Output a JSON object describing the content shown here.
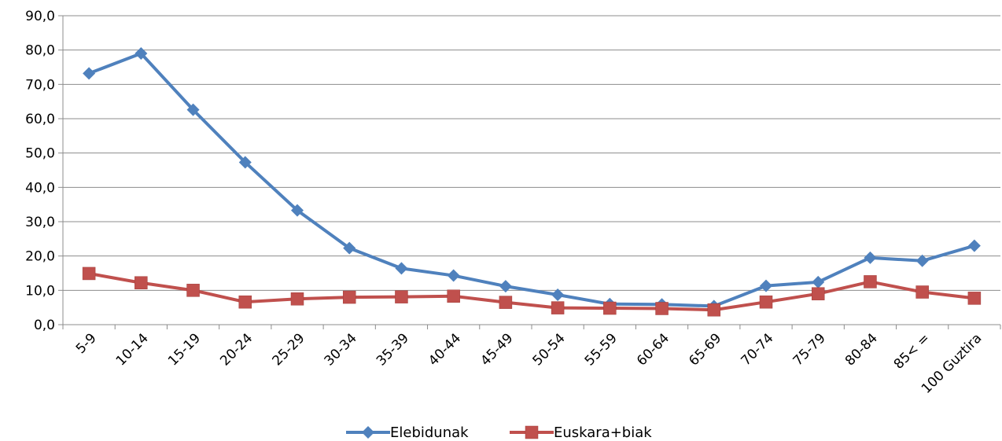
{
  "chart_data": {
    "type": "line",
    "title": "",
    "xlabel": "",
    "ylabel": "",
    "categories": [
      "5-9",
      "10-14",
      "15-19",
      "20-24",
      "25-29",
      "30-34",
      "35-39",
      "40-44",
      "45-49",
      "50-54",
      "55-59",
      "60-64",
      "65-69",
      "70-74",
      "75-79",
      "80-84",
      "85< =",
      "100 Guztira"
    ],
    "ylim": [
      0,
      90
    ],
    "yticks": [
      "0,0",
      "10,0",
      "20,0",
      "30,0",
      "40,0",
      "50,0",
      "60,0",
      "70,0",
      "80,0",
      "90,0"
    ],
    "grid": true,
    "legend_position": "bottom",
    "series": [
      {
        "name": "Elebidunak",
        "color": "#4F81BD",
        "marker": "diamond",
        "values": [
          73.2,
          79.0,
          62.6,
          47.3,
          33.3,
          22.3,
          16.4,
          14.3,
          11.2,
          8.7,
          6.0,
          5.9,
          5.4,
          11.3,
          12.4,
          19.5,
          18.6,
          23.0
        ]
      },
      {
        "name": "Euskara+biak",
        "color": "#C0504D",
        "marker": "square",
        "values": [
          14.9,
          12.2,
          10.0,
          6.6,
          7.5,
          8.0,
          8.1,
          8.3,
          6.5,
          4.9,
          4.8,
          4.7,
          4.3,
          6.6,
          9.0,
          12.5,
          9.5,
          7.7
        ]
      }
    ]
  }
}
